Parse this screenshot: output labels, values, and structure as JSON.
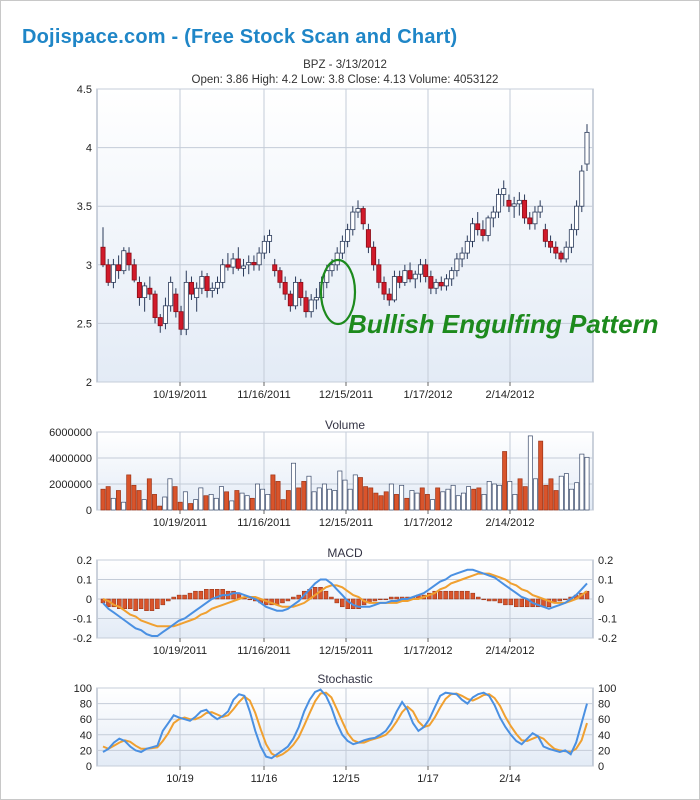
{
  "header": {
    "site_title": "Dojispace.com - (Free Stock Scan and Chart)",
    "symbol_line": "BPZ - 3/13/2012",
    "quote_line": "Open:  3.86   High: 4.2   Low: 3.8   Close: 4.13   Volume: 4053122"
  },
  "annotation": {
    "text": "Bullish Engulfing Pattern",
    "color": "#1d8a1d"
  },
  "colors": {
    "up_candle": "#ffffff",
    "down_candle": "#d11a2a",
    "volume_up": "#ffffff",
    "volume_down": "#d9542b",
    "macd_line": "#4a90e2",
    "signal_line": "#f0a030",
    "histogram": "#d9542b",
    "panel_bg_top": "#ffffff",
    "panel_bg_bottom": "#e6edf7"
  },
  "chart_data": [
    {
      "type": "candlestick",
      "title": "BPZ - 3/13/2012",
      "ylim": [
        2,
        4.5
      ],
      "yticks": [
        "2",
        "2.5",
        "3",
        "3.5",
        "4",
        "4.5"
      ],
      "xticks": [
        "10/19/2011",
        "11/16/2011",
        "12/15/2011",
        "1/17/2012",
        "2/14/2012"
      ],
      "candles": [
        [
          3.15,
          3.32,
          2.98,
          3.0
        ],
        [
          3.0,
          3.05,
          2.82,
          2.85
        ],
        [
          2.85,
          3.05,
          2.8,
          3.0
        ],
        [
          3.0,
          3.08,
          2.88,
          2.95
        ],
        [
          2.95,
          3.15,
          2.92,
          3.12
        ],
        [
          3.1,
          3.15,
          2.95,
          3.0
        ],
        [
          3.0,
          3.05,
          2.85,
          2.87
        ],
        [
          2.85,
          2.9,
          2.65,
          2.72
        ],
        [
          2.72,
          2.85,
          2.6,
          2.82
        ],
        [
          2.8,
          2.9,
          2.7,
          2.75
        ],
        [
          2.75,
          2.78,
          2.5,
          2.55
        ],
        [
          2.55,
          2.58,
          2.42,
          2.48
        ],
        [
          2.5,
          2.72,
          2.45,
          2.65
        ],
        [
          2.65,
          2.9,
          2.6,
          2.85
        ],
        [
          2.75,
          2.8,
          2.55,
          2.6
        ],
        [
          2.6,
          2.65,
          2.4,
          2.45
        ],
        [
          2.45,
          2.95,
          2.4,
          2.85
        ],
        [
          2.85,
          2.9,
          2.7,
          2.75
        ],
        [
          2.72,
          2.85,
          2.6,
          2.8
        ],
        [
          2.8,
          2.95,
          2.75,
          2.9
        ],
        [
          2.9,
          2.93,
          2.72,
          2.78
        ],
        [
          2.78,
          2.85,
          2.72,
          2.8
        ],
        [
          2.8,
          2.9,
          2.75,
          2.85
        ],
        [
          2.85,
          3.05,
          2.8,
          3.0
        ],
        [
          3.0,
          3.1,
          2.95,
          2.98
        ],
        [
          2.98,
          3.1,
          2.92,
          3.05
        ],
        [
          3.05,
          3.15,
          2.95,
          2.97
        ],
        [
          2.97,
          3.05,
          2.9,
          2.99
        ],
        [
          3.0,
          3.08,
          2.92,
          3.02
        ],
        [
          3.02,
          3.08,
          2.95,
          3.0
        ],
        [
          3.0,
          3.15,
          2.95,
          3.1
        ],
        [
          3.1,
          3.25,
          3.05,
          3.2
        ],
        [
          3.2,
          3.3,
          3.1,
          3.25
        ],
        [
          3.0,
          3.05,
          2.9,
          2.95
        ],
        [
          2.95,
          2.98,
          2.8,
          2.85
        ],
        [
          2.85,
          2.9,
          2.7,
          2.75
        ],
        [
          2.75,
          2.78,
          2.6,
          2.65
        ],
        [
          2.65,
          2.9,
          2.62,
          2.85
        ],
        [
          2.85,
          2.88,
          2.65,
          2.72
        ],
        [
          2.72,
          2.78,
          2.55,
          2.6
        ],
        [
          2.6,
          2.75,
          2.55,
          2.7
        ],
        [
          2.7,
          2.8,
          2.62,
          2.72
        ],
        [
          2.72,
          2.9,
          2.7,
          2.85
        ],
        [
          2.85,
          3.0,
          2.8,
          2.95
        ],
        [
          2.95,
          3.05,
          2.9,
          3.0
        ],
        [
          3.0,
          3.15,
          2.95,
          3.1
        ],
        [
          3.1,
          3.25,
          3.05,
          3.2
        ],
        [
          3.2,
          3.35,
          3.15,
          3.3
        ],
        [
          3.3,
          3.5,
          3.25,
          3.45
        ],
        [
          3.45,
          3.55,
          3.4,
          3.48
        ],
        [
          3.48,
          3.5,
          3.3,
          3.35
        ],
        [
          3.3,
          3.35,
          3.1,
          3.15
        ],
        [
          3.15,
          3.2,
          2.95,
          3.0
        ],
        [
          3.0,
          3.05,
          2.8,
          2.85
        ],
        [
          2.85,
          2.9,
          2.7,
          2.75
        ],
        [
          2.75,
          2.8,
          2.65,
          2.7
        ],
        [
          2.7,
          2.95,
          2.68,
          2.9
        ],
        [
          2.9,
          2.95,
          2.8,
          2.85
        ],
        [
          2.85,
          3.0,
          2.82,
          2.95
        ],
        [
          2.95,
          3.02,
          2.85,
          2.88
        ],
        [
          2.88,
          2.95,
          2.8,
          2.92
        ],
        [
          2.92,
          3.05,
          2.85,
          3.0
        ],
        [
          3.0,
          3.05,
          2.85,
          2.9
        ],
        [
          2.9,
          2.95,
          2.75,
          2.8
        ],
        [
          2.8,
          2.88,
          2.75,
          2.85
        ],
        [
          2.85,
          2.9,
          2.78,
          2.82
        ],
        [
          2.82,
          2.92,
          2.78,
          2.88
        ],
        [
          2.88,
          2.98,
          2.82,
          2.95
        ],
        [
          2.95,
          3.1,
          2.9,
          3.05
        ],
        [
          3.05,
          3.15,
          2.98,
          3.1
        ],
        [
          3.1,
          3.25,
          3.05,
          3.2
        ],
        [
          3.2,
          3.4,
          3.15,
          3.35
        ],
        [
          3.35,
          3.45,
          3.25,
          3.3
        ],
        [
          3.3,
          3.38,
          3.2,
          3.25
        ],
        [
          3.25,
          3.42,
          3.2,
          3.4
        ],
        [
          3.4,
          3.5,
          3.32,
          3.45
        ],
        [
          3.45,
          3.65,
          3.4,
          3.6
        ],
        [
          3.6,
          3.72,
          3.5,
          3.65
        ],
        [
          3.55,
          3.6,
          3.45,
          3.5
        ],
        [
          3.5,
          3.58,
          3.4,
          3.52
        ],
        [
          3.52,
          3.62,
          3.42,
          3.55
        ],
        [
          3.55,
          3.6,
          3.35,
          3.4
        ],
        [
          3.4,
          3.45,
          3.3,
          3.35
        ],
        [
          3.35,
          3.5,
          3.3,
          3.45
        ],
        [
          3.45,
          3.55,
          3.4,
          3.5
        ],
        [
          3.3,
          3.35,
          3.15,
          3.2
        ],
        [
          3.2,
          3.25,
          3.1,
          3.15
        ],
        [
          3.15,
          3.2,
          3.05,
          3.1
        ],
        [
          3.1,
          3.12,
          3.02,
          3.05
        ],
        [
          3.05,
          3.2,
          3.02,
          3.15
        ],
        [
          3.15,
          3.35,
          3.1,
          3.3
        ],
        [
          3.3,
          3.55,
          3.25,
          3.5
        ],
        [
          3.5,
          3.85,
          3.45,
          3.8
        ],
        [
          3.86,
          4.2,
          3.8,
          4.13
        ]
      ]
    },
    {
      "type": "bar",
      "title": "Volume",
      "ylim": [
        0,
        6000000
      ],
      "yticks": [
        "0",
        "2000000",
        "4000000",
        "6000000"
      ],
      "xticks": [
        "10/19/2011",
        "11/16/2011",
        "12/15/2011",
        "1/17/2012",
        "2/14/2012"
      ],
      "values": [
        1600000,
        1800000,
        900000,
        1500000,
        600000,
        2700000,
        1900000,
        1500000,
        800000,
        2400000,
        1200000,
        300000,
        1000000,
        2400000,
        1800000,
        600000,
        1400000,
        500000,
        800000,
        1700000,
        1100000,
        1200000,
        900000,
        1800000,
        1400000,
        700000,
        1500000,
        1300000,
        1100000,
        900000,
        2000000,
        1600000,
        1200000,
        2700000,
        2200000,
        800000,
        1500000,
        3600000,
        1700000,
        2200000,
        2600000,
        1400000,
        1700000,
        2000000,
        1600000,
        1500000,
        3000000,
        2300000,
        1600000,
        2700000,
        2500000,
        1800000,
        1700000,
        1300000,
        1100000,
        1400000,
        2000000,
        1200000,
        1900000,
        900000,
        1500000,
        1300000,
        1700000,
        1200000,
        800000,
        1700000,
        1400000,
        1600000,
        1900000,
        1100000,
        1300000,
        1800000,
        1600000,
        1700000,
        1200000,
        2200000,
        2000000,
        1900000,
        4500000,
        2200000,
        1200000,
        2400000,
        1800000,
        5700000,
        2400000,
        5300000,
        1900000,
        2400000,
        1500000,
        2600000,
        2800000,
        1600000,
        2100000,
        4300000,
        4053122
      ]
    },
    {
      "type": "line",
      "title": "MACD",
      "ylim": [
        -0.2,
        0.2
      ],
      "yticks": [
        "-0.2",
        "-0.1",
        "0",
        "0.1",
        "0.2"
      ],
      "xticks": [
        "10/19/2011",
        "11/16/2011",
        "12/15/2011",
        "1/17/2012",
        "2/14/2012"
      ],
      "series": [
        {
          "role": "macd",
          "values": [
            -0.02,
            -0.05,
            -0.07,
            -0.09,
            -0.11,
            -0.13,
            -0.15,
            -0.16,
            -0.18,
            -0.19,
            -0.19,
            -0.17,
            -0.15,
            -0.13,
            -0.11,
            -0.1,
            -0.08,
            -0.06,
            -0.04,
            -0.02,
            0.0,
            0.01,
            0.02,
            0.02,
            0.03,
            0.03,
            0.02,
            0.01,
            0.0,
            -0.02,
            -0.04,
            -0.05,
            -0.06,
            -0.06,
            -0.05,
            -0.03,
            -0.01,
            0.02,
            0.05,
            0.08,
            0.1,
            0.1,
            0.08,
            0.05,
            0.02,
            -0.01,
            -0.03,
            -0.04,
            -0.04,
            -0.04,
            -0.03,
            -0.02,
            -0.02,
            -0.01,
            -0.01,
            0.0,
            0.0,
            0.01,
            0.02,
            0.03,
            0.05,
            0.07,
            0.09,
            0.1,
            0.12,
            0.13,
            0.14,
            0.15,
            0.15,
            0.14,
            0.13,
            0.12,
            0.11,
            0.09,
            0.07,
            0.05,
            0.03,
            0.01,
            0.0,
            -0.02,
            -0.03,
            -0.04,
            -0.05,
            -0.04,
            -0.03,
            -0.02,
            0.0,
            0.02,
            0.05,
            0.08
          ]
        },
        {
          "role": "signal",
          "values": [
            0.0,
            -0.01,
            -0.03,
            -0.04,
            -0.06,
            -0.08,
            -0.09,
            -0.11,
            -0.12,
            -0.13,
            -0.14,
            -0.14,
            -0.14,
            -0.14,
            -0.13,
            -0.12,
            -0.11,
            -0.1,
            -0.08,
            -0.07,
            -0.05,
            -0.04,
            -0.03,
            -0.02,
            -0.01,
            0.0,
            0.01,
            0.01,
            0.01,
            0.0,
            -0.01,
            -0.02,
            -0.03,
            -0.04,
            -0.04,
            -0.04,
            -0.03,
            -0.02,
            0.0,
            0.02,
            0.04,
            0.06,
            0.07,
            0.07,
            0.06,
            0.04,
            0.02,
            0.01,
            -0.01,
            -0.02,
            -0.02,
            -0.02,
            -0.02,
            -0.02,
            -0.02,
            -0.01,
            -0.01,
            0.0,
            0.0,
            0.01,
            0.02,
            0.03,
            0.05,
            0.06,
            0.08,
            0.09,
            0.1,
            0.11,
            0.12,
            0.13,
            0.13,
            0.13,
            0.12,
            0.11,
            0.1,
            0.08,
            0.07,
            0.05,
            0.04,
            0.02,
            0.01,
            0.0,
            -0.01,
            -0.02,
            -0.02,
            -0.02,
            -0.01,
            0.0,
            0.02,
            0.04
          ]
        }
      ]
    },
    {
      "type": "line",
      "title": "Stochastic",
      "ylim": [
        0,
        100
      ],
      "yticks": [
        "0",
        "20",
        "40",
        "60",
        "80",
        "100"
      ],
      "xticks": [
        "10/19",
        "11/16",
        "12/15",
        "1/17",
        "2/14"
      ],
      "series": [
        {
          "role": "k",
          "values": [
            18,
            22,
            30,
            35,
            32,
            25,
            20,
            18,
            22,
            24,
            26,
            45,
            55,
            65,
            62,
            60,
            58,
            63,
            70,
            72,
            65,
            60,
            64,
            70,
            85,
            92,
            90,
            70,
            45,
            25,
            12,
            10,
            15,
            20,
            25,
            35,
            50,
            70,
            85,
            95,
            98,
            90,
            75,
            55,
            40,
            32,
            28,
            30,
            33,
            35,
            36,
            40,
            45,
            55,
            70,
            82,
            72,
            55,
            45,
            50,
            60,
            75,
            90,
            94,
            93,
            92,
            85,
            80,
            88,
            92,
            94,
            90,
            78,
            62,
            50,
            40,
            32,
            28,
            35,
            42,
            38,
            25,
            22,
            20,
            18,
            20,
            15,
            30,
            55,
            80
          ]
        },
        {
          "role": "d",
          "values": [
            25,
            22,
            26,
            30,
            33,
            31,
            26,
            22,
            22,
            23,
            24,
            32,
            42,
            55,
            60,
            62,
            60,
            60,
            63,
            68,
            69,
            66,
            63,
            65,
            73,
            82,
            89,
            84,
            68,
            47,
            28,
            16,
            12,
            15,
            20,
            27,
            37,
            52,
            68,
            83,
            93,
            94,
            88,
            73,
            57,
            42,
            33,
            30,
            30,
            33,
            35,
            37,
            40,
            47,
            57,
            69,
            76,
            70,
            57,
            50,
            52,
            62,
            75,
            86,
            92,
            93,
            90,
            86,
            84,
            87,
            91,
            92,
            87,
            77,
            63,
            51,
            41,
            33,
            32,
            35,
            38,
            35,
            28,
            22,
            20,
            19,
            18,
            22,
            33,
            55
          ]
        }
      ]
    }
  ]
}
